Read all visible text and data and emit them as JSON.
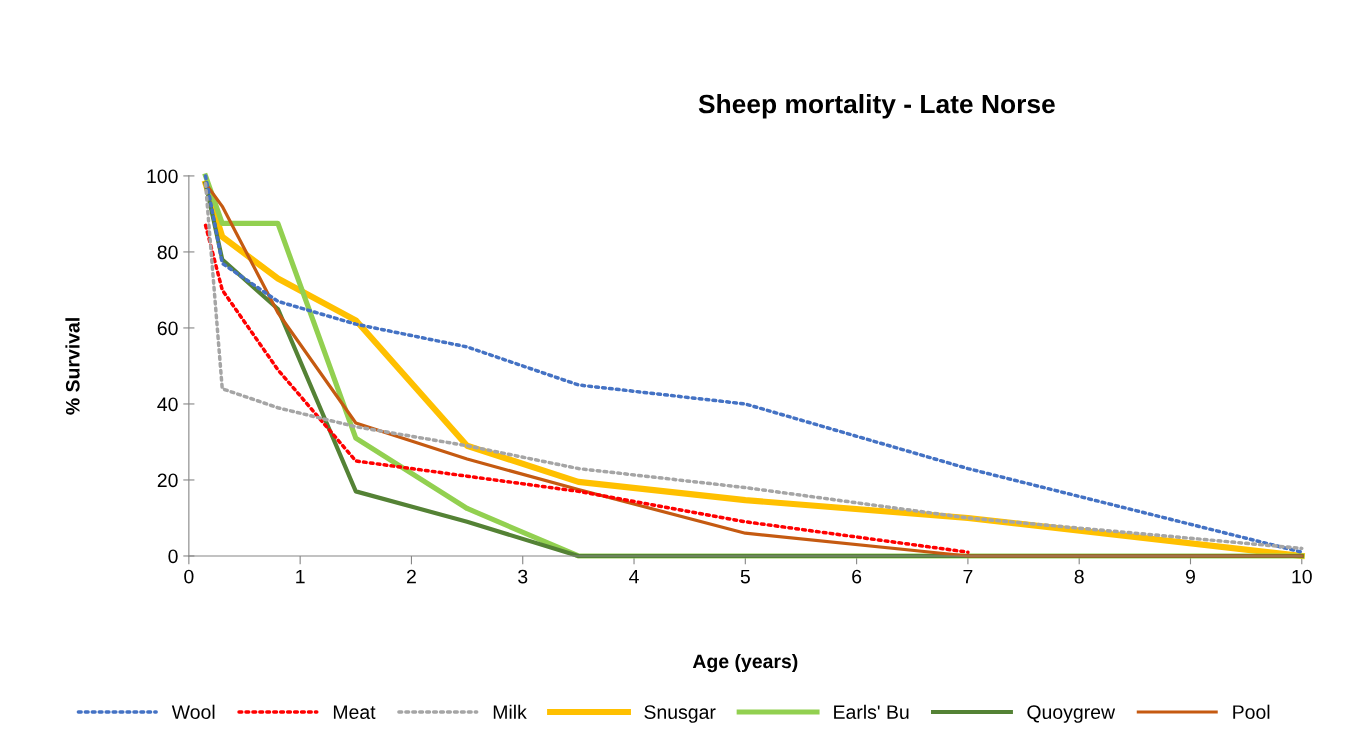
{
  "chart_data": {
    "type": "line",
    "title": "Sheep mortality - Late Norse",
    "xlabel": "Age (years)",
    "ylabel": "% Survival",
    "x": [
      0.15,
      0.3,
      0.8,
      1.5,
      2.5,
      3.5,
      5,
      7,
      10
    ],
    "series": [
      {
        "name": "Wool",
        "color": "#4472c4",
        "line_style": "dotted",
        "values": [
          100,
          77,
          67,
          61,
          55,
          45,
          40,
          23,
          1
        ]
      },
      {
        "name": "Meat",
        "color": "#ff0000",
        "line_style": "dotted",
        "values": [
          87,
          70,
          49,
          25,
          21,
          17,
          9,
          1,
          null
        ]
      },
      {
        "name": "Milk",
        "color": "#a5a5a5",
        "line_style": "dotted",
        "values": [
          98,
          44,
          39,
          34,
          29,
          23,
          18,
          10,
          2
        ]
      },
      {
        "name": "Snusgar",
        "color": "#ffc000",
        "line_style": "solid",
        "values": [
          98,
          84,
          73,
          62,
          29,
          19.5,
          14.7,
          10,
          0
        ]
      },
      {
        "name": "Earls' Bu",
        "color": "#92d050",
        "line_style": "solid",
        "values": [
          100,
          87.5,
          87.5,
          31,
          12.5,
          0,
          0,
          0,
          0
        ]
      },
      {
        "name": "Quoygrew",
        "color": "#548235",
        "line_style": "solid",
        "values": [
          98,
          78,
          65,
          17,
          9,
          0,
          0,
          0,
          0
        ]
      },
      {
        "name": "Pool",
        "color": "#c55a11",
        "line_style": "solid",
        "values": [
          98,
          92,
          64,
          35,
          25.5,
          17.5,
          6,
          0,
          0
        ]
      }
    ],
    "xlim": [
      0,
      10
    ],
    "xticks": [
      0,
      1,
      2,
      3,
      4,
      5,
      6,
      7,
      8,
      9,
      10
    ],
    "ylim": [
      0,
      100
    ],
    "yticks": [
      0,
      20,
      40,
      60,
      80,
      100
    ],
    "grid": false,
    "legend": "bottom",
    "marker": "none"
  }
}
